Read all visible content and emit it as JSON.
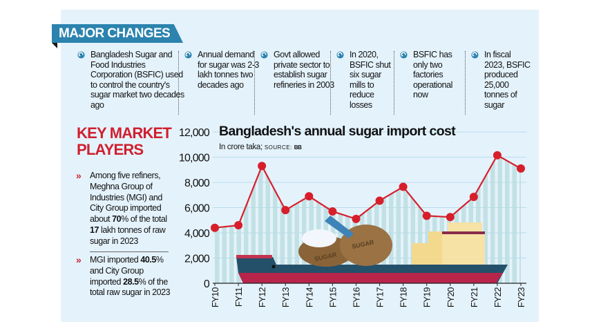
{
  "major_changes": {
    "title": "MAJOR CHANGES",
    "icon": "circular-arrow-icon",
    "items": [
      "Bangladesh Sugar and Food Industries Corporation (BSFIC) used to control the country's sugar market two decades ago",
      "Annual demand for sugar was 2-3 lakh tonnes two decades ago",
      "Govt allowed private sector to establish sugar refineries in 2003",
      "In 2020, BSFIC shut six sugar mills to reduce losses",
      "BSFIC has only two factories operational now",
      "In fiscal 2023, BSFIC produced 25,000 tonnes of sugar"
    ]
  },
  "key_market_players": {
    "title_line1": "KEY MARKET",
    "title_line2": "PLAYERS",
    "points": [
      {
        "a": "Among five refiners, Meghna Group of Industries (MGI) and City Group imported about ",
        "b1": "70",
        "c": "% of the total ",
        "b2": "17",
        "d": " lakh tonnes of raw sugar in 2023"
      },
      {
        "a": "MGI imported ",
        "b1": "40.5",
        "c": "% and City Group imported ",
        "b2": "28.5",
        "d": "% of the total raw sugar in 2023"
      }
    ]
  },
  "chart_data": {
    "type": "line",
    "title": "Bangladesh's annual sugar import cost",
    "subtitle": "In crore taka;",
    "source_label": "SOURCE:",
    "source": "BB",
    "categories": [
      "FY10",
      "FY11",
      "FY12",
      "FY13",
      "FY14",
      "FY15",
      "FY16",
      "FY17",
      "FY18",
      "FY19",
      "FY20",
      "FY21",
      "FY22",
      "FY23"
    ],
    "values": [
      4400,
      4600,
      9300,
      5800,
      6900,
      5700,
      5100,
      6550,
      7650,
      5350,
      5250,
      6850,
      10150,
      9100
    ],
    "yticks": [
      "0",
      "2,000",
      "4,000",
      "6,000",
      "8,000",
      "10,000",
      "12,000"
    ],
    "ylim": [
      0,
      12000
    ],
    "grid": true,
    "line_color": "#d61f2b",
    "stripe_color": "#b9dde0",
    "illustration_labels": [
      "SUGAR",
      "SUGAR"
    ]
  }
}
